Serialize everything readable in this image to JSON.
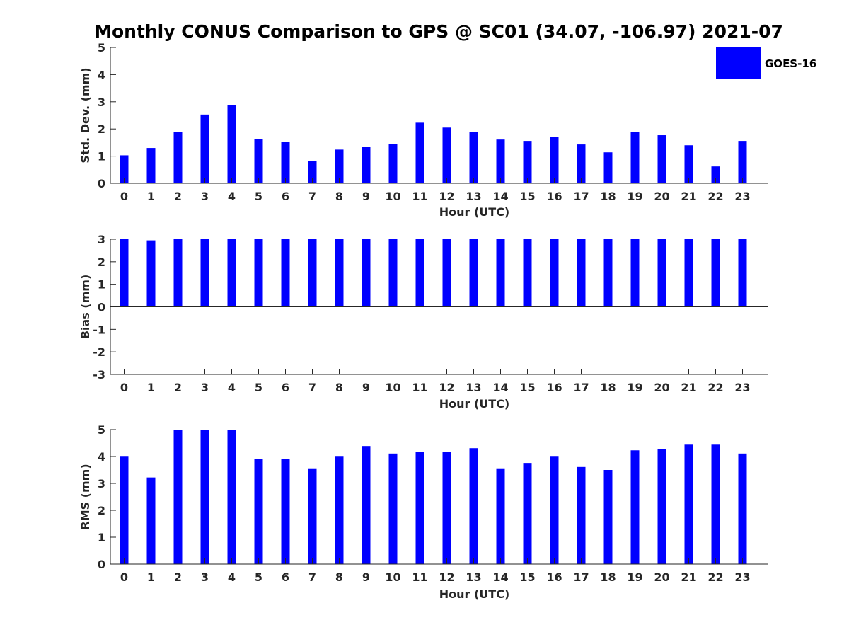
{
  "title": "Monthly CONUS Comparison to GPS @ SC01 (34.07, -106.97) 2021-07",
  "legend": {
    "label": "GOES-16",
    "color": "#0000ff",
    "placement": "top-right"
  },
  "colors": {
    "bar": "#0000ff",
    "axis": "#262626"
  },
  "chart_data": [
    {
      "type": "bar",
      "xlabel": "Hour (UTC)",
      "ylabel": "Std. Dev. (mm)",
      "ylim": [
        0,
        5
      ],
      "yticks": [
        0,
        1,
        2,
        3,
        4,
        5
      ],
      "categories": [
        "0",
        "1",
        "2",
        "3",
        "4",
        "5",
        "6",
        "7",
        "8",
        "9",
        "10",
        "11",
        "12",
        "13",
        "14",
        "15",
        "16",
        "17",
        "18",
        "19",
        "20",
        "21",
        "22",
        "23"
      ],
      "series": [
        {
          "name": "GOES-16",
          "values": [
            1.03,
            1.3,
            1.9,
            2.53,
            2.87,
            1.64,
            1.53,
            0.83,
            1.24,
            1.35,
            1.45,
            2.23,
            2.05,
            1.9,
            1.61,
            1.56,
            1.71,
            1.43,
            1.14,
            1.9,
            1.77,
            1.4,
            0.62,
            1.56
          ]
        }
      ],
      "grid": false
    },
    {
      "type": "bar",
      "xlabel": "Hour (UTC)",
      "ylabel": "Bias (mm)",
      "ylim": [
        -3,
        3
      ],
      "yticks": [
        -3,
        -2,
        -1,
        0,
        1,
        2,
        3
      ],
      "categories": [
        "0",
        "1",
        "2",
        "3",
        "4",
        "5",
        "6",
        "7",
        "8",
        "9",
        "10",
        "11",
        "12",
        "13",
        "14",
        "15",
        "16",
        "17",
        "18",
        "19",
        "20",
        "21",
        "22",
        "23"
      ],
      "series": [
        {
          "name": "GOES-16",
          "values": [
            3,
            2.95,
            3,
            3,
            3,
            3,
            3,
            3,
            3,
            3,
            3,
            3,
            3,
            3,
            3,
            3,
            3,
            3,
            3,
            3,
            3,
            3,
            3,
            3
          ]
        }
      ],
      "grid": false
    },
    {
      "type": "bar",
      "xlabel": "Hour (UTC)",
      "ylabel": "RMS (mm)",
      "ylim": [
        0,
        5
      ],
      "yticks": [
        0,
        1,
        2,
        3,
        4,
        5
      ],
      "categories": [
        "0",
        "1",
        "2",
        "3",
        "4",
        "5",
        "6",
        "7",
        "8",
        "9",
        "10",
        "11",
        "12",
        "13",
        "14",
        "15",
        "16",
        "17",
        "18",
        "19",
        "20",
        "21",
        "22",
        "23"
      ],
      "series": [
        {
          "name": "GOES-16",
          "values": [
            4.02,
            3.22,
            5,
            5,
            5,
            3.91,
            3.91,
            3.56,
            4.02,
            4.39,
            4.11,
            4.16,
            4.16,
            4.31,
            3.56,
            3.76,
            4.02,
            3.61,
            3.5,
            4.23,
            4.28,
            4.44,
            4.44,
            4.11
          ]
        }
      ],
      "grid": false
    }
  ]
}
